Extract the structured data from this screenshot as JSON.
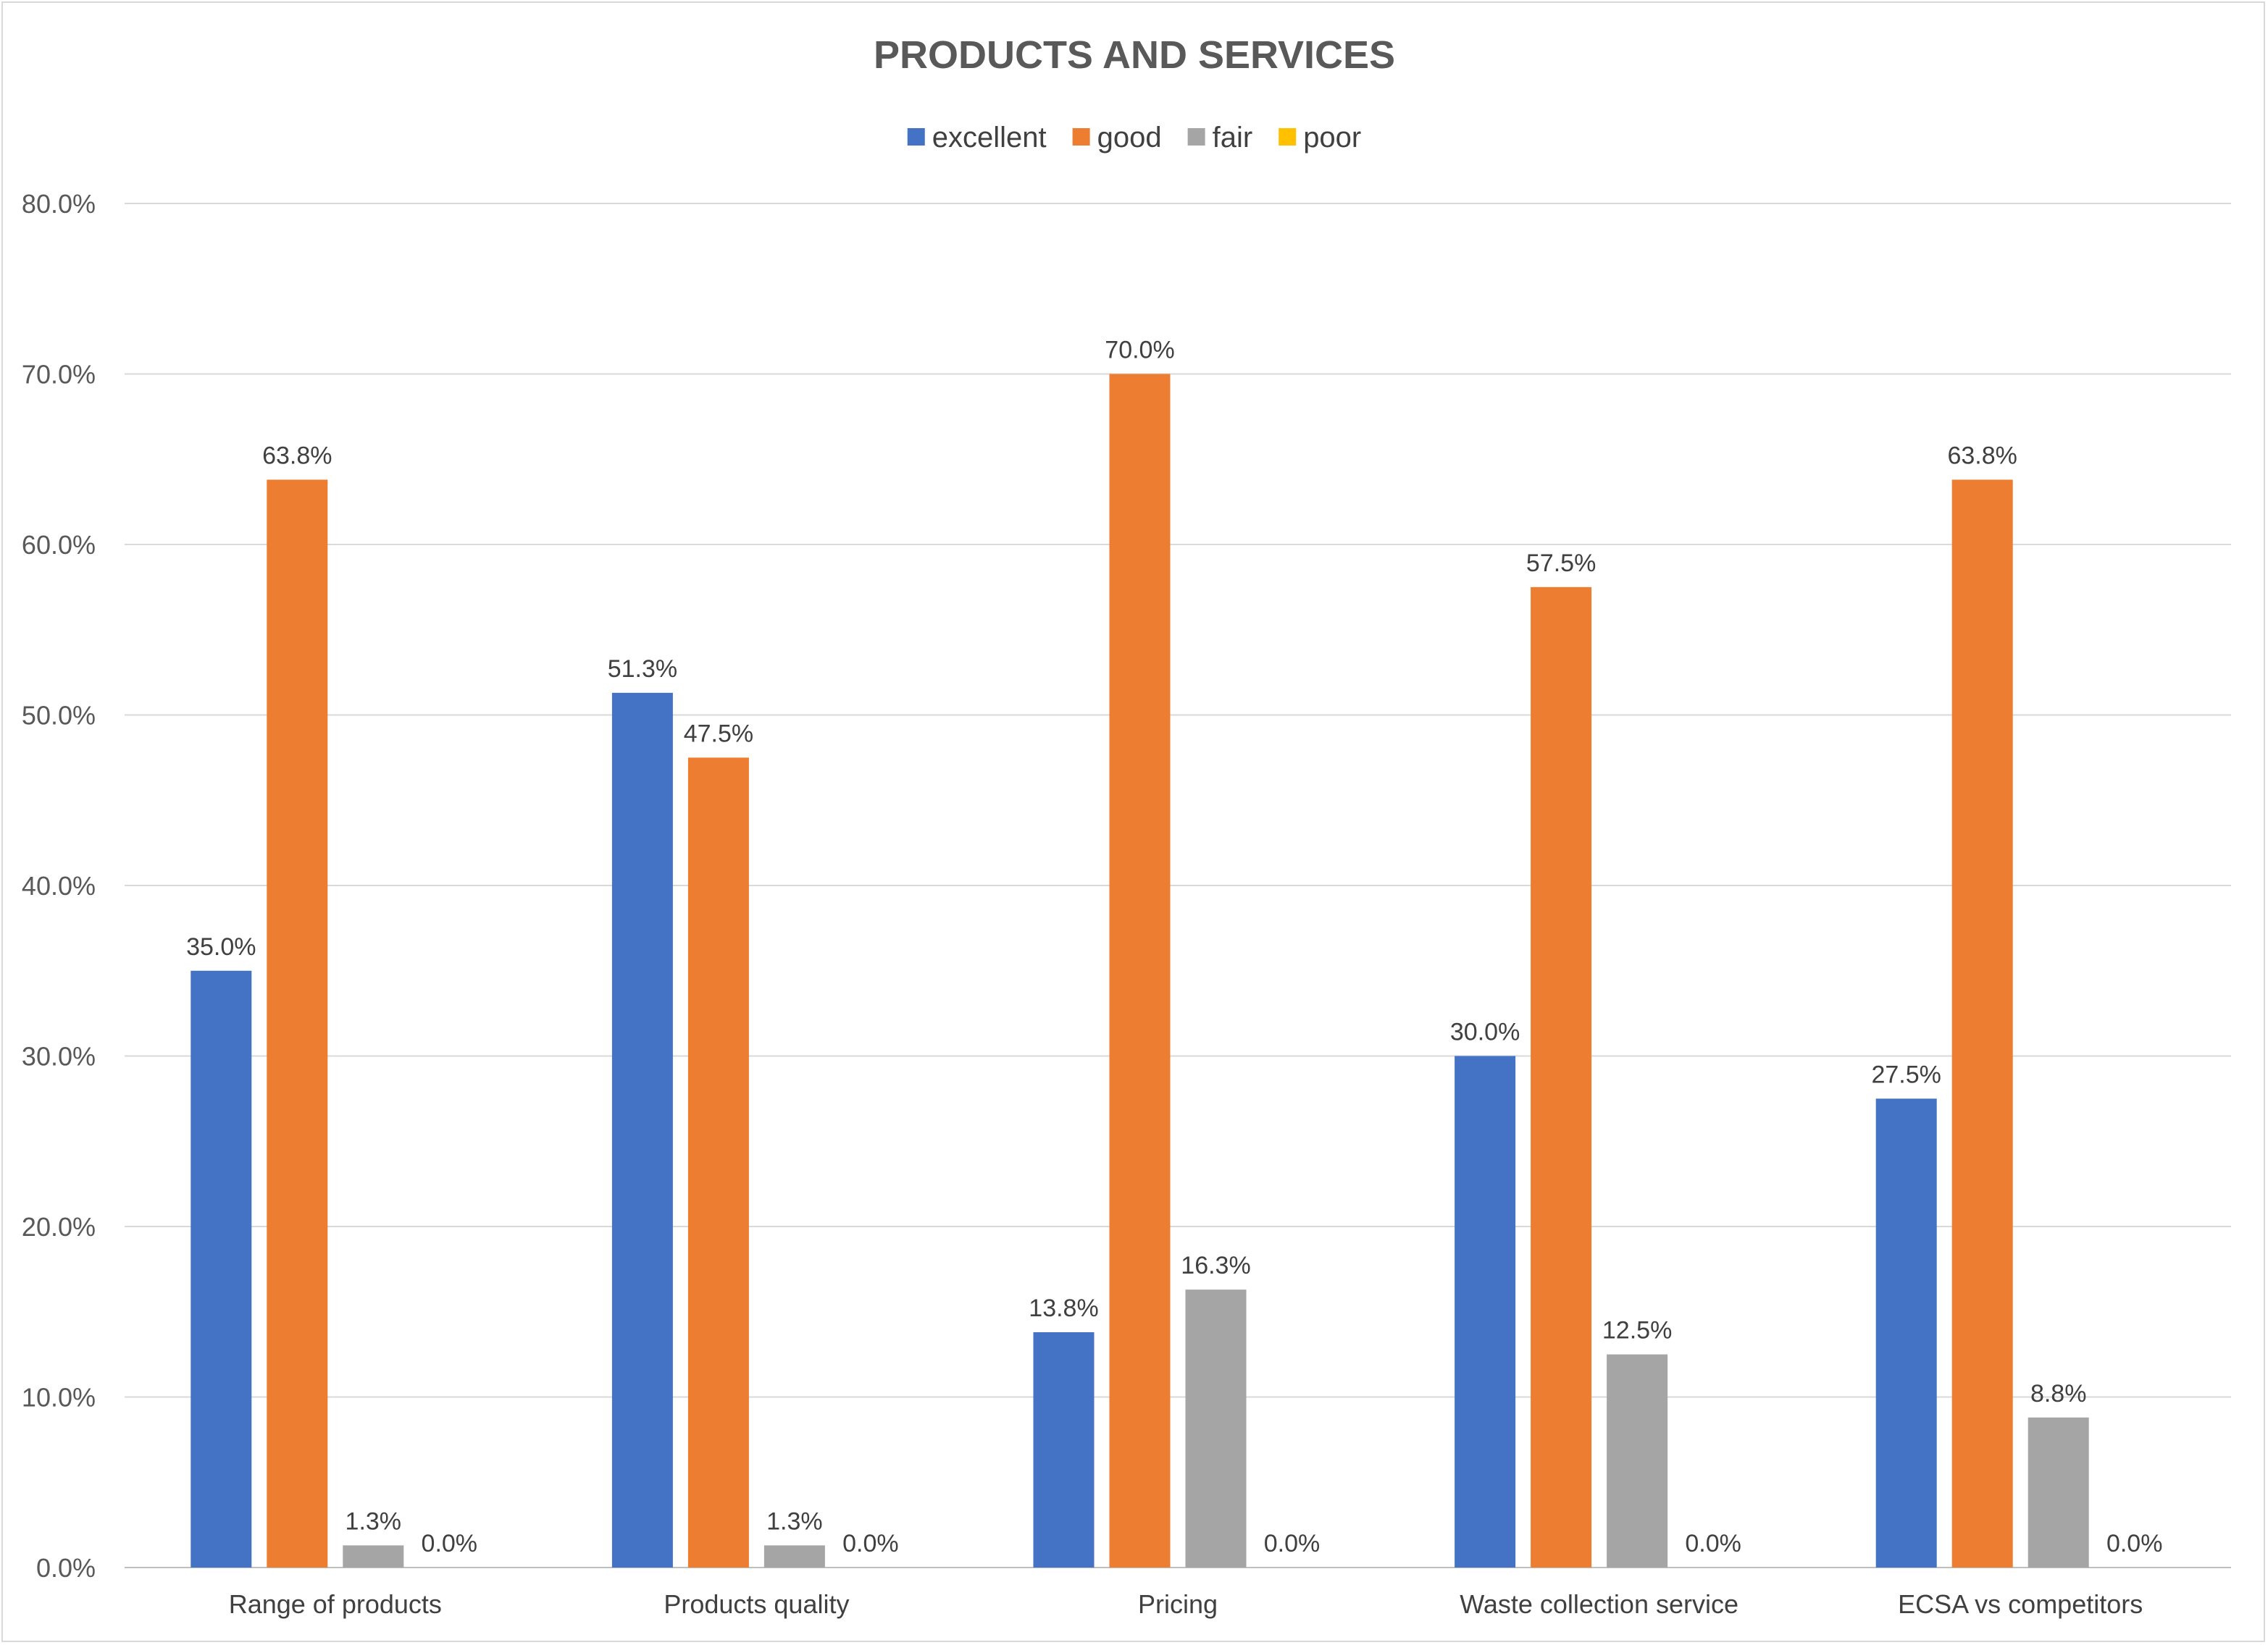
{
  "chart_data": {
    "type": "bar",
    "title": "PRODUCTS AND SERVICES",
    "categories": [
      "Range of products",
      "Products quality",
      "Pricing",
      "Waste collection service",
      "ECSA vs competitors"
    ],
    "series": [
      {
        "name": "excellent",
        "color": "#4472C4",
        "values": [
          35.0,
          51.3,
          13.8,
          30.0,
          27.5
        ],
        "labels": [
          "35.0%",
          "51.3%",
          "13.8%",
          "30.0%",
          "27.5%"
        ]
      },
      {
        "name": "good",
        "color": "#ED7D31",
        "values": [
          63.8,
          47.5,
          70.0,
          57.5,
          63.8
        ],
        "labels": [
          "63.8%",
          "47.5%",
          "70.0%",
          "57.5%",
          "63.8%"
        ]
      },
      {
        "name": "fair",
        "color": "#A5A5A5",
        "values": [
          1.3,
          1.3,
          16.3,
          12.5,
          8.8
        ],
        "labels": [
          "1.3%",
          "1.3%",
          "16.3%",
          "12.5%",
          "8.8%"
        ]
      },
      {
        "name": "poor",
        "color": "#FFC000",
        "values": [
          0.0,
          0.0,
          0.0,
          0.0,
          0.0
        ],
        "labels": [
          "0.0%",
          "0.0%",
          "0.0%",
          "0.0%",
          "0.0%"
        ]
      }
    ],
    "ylim": [
      0,
      80
    ],
    "yticks": [
      0,
      10,
      20,
      30,
      40,
      50,
      60,
      70,
      80
    ],
    "ytick_labels": [
      "0.0%",
      "10.0%",
      "20.0%",
      "30.0%",
      "40.0%",
      "50.0%",
      "60.0%",
      "70.0%",
      "80.0%"
    ],
    "grid": true,
    "legend_position": "top-center",
    "xlabel": "",
    "ylabel": ""
  }
}
